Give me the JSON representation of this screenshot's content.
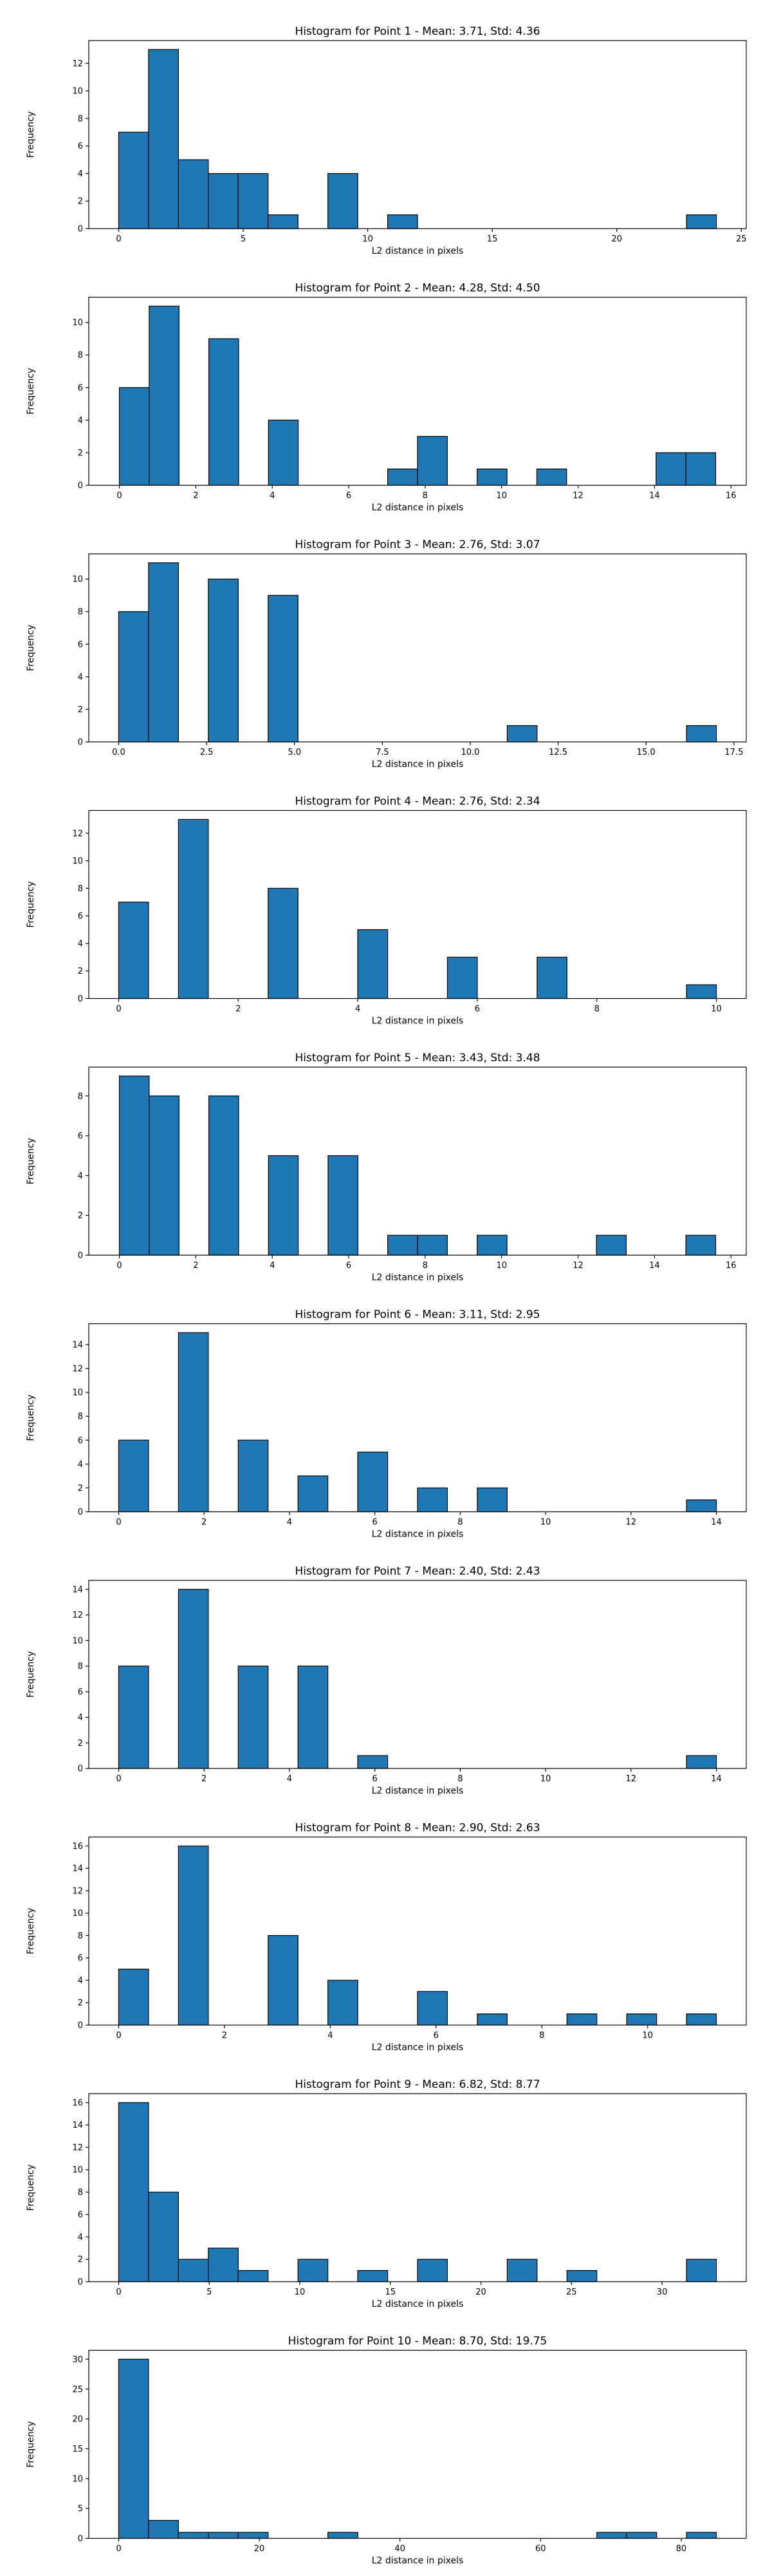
{
  "chart_data": [
    {
      "type": "bar",
      "title": "Histogram for Point 1 - Mean: 3.71, Std: 4.36",
      "xlabel": "L2 distance in pixels",
      "ylabel": "Frequency",
      "xlim": [
        -1.2,
        25.2
      ],
      "ylim": [
        0,
        13.65
      ],
      "xticks": [
        0,
        5,
        10,
        15,
        20,
        25
      ],
      "xtick_labels": [
        "0",
        "5",
        "10",
        "15",
        "20",
        "25"
      ],
      "yticks": [
        0,
        2,
        4,
        6,
        8,
        10,
        12
      ],
      "bins": [
        {
          "x0": 0.0,
          "x1": 1.2,
          "count": 7
        },
        {
          "x0": 1.2,
          "x1": 2.4,
          "count": 13
        },
        {
          "x0": 2.4,
          "x1": 3.6,
          "count": 5
        },
        {
          "x0": 3.6,
          "x1": 4.8,
          "count": 4
        },
        {
          "x0": 4.8,
          "x1": 6.0,
          "count": 4
        },
        {
          "x0": 6.0,
          "x1": 7.2,
          "count": 1
        },
        {
          "x0": 8.4,
          "x1": 9.6,
          "count": 4
        },
        {
          "x0": 10.8,
          "x1": 12.0,
          "count": 1
        },
        {
          "x0": 22.8,
          "x1": 24.0,
          "count": 1
        }
      ]
    },
    {
      "type": "bar",
      "title": "Histogram for Point 2 - Mean: 4.28, Std: 4.50",
      "xlabel": "L2 distance in pixels",
      "ylabel": "Frequency",
      "xlim": [
        -0.8,
        16.4
      ],
      "ylim": [
        0,
        11.55
      ],
      "xticks": [
        0,
        2,
        4,
        6,
        8,
        10,
        12,
        14,
        16
      ],
      "xtick_labels": [
        "0",
        "2",
        "4",
        "6",
        "8",
        "10",
        "12",
        "14",
        "16"
      ],
      "yticks": [
        0,
        2,
        4,
        6,
        8,
        10
      ],
      "bins": [
        {
          "x0": 0.0,
          "x1": 0.78,
          "count": 6
        },
        {
          "x0": 0.78,
          "x1": 1.56,
          "count": 11
        },
        {
          "x0": 2.34,
          "x1": 3.12,
          "count": 9
        },
        {
          "x0": 3.9,
          "x1": 4.68,
          "count": 4
        },
        {
          "x0": 7.02,
          "x1": 7.8,
          "count": 1
        },
        {
          "x0": 7.8,
          "x1": 8.58,
          "count": 3
        },
        {
          "x0": 9.36,
          "x1": 10.14,
          "count": 1
        },
        {
          "x0": 10.92,
          "x1": 11.7,
          "count": 1
        },
        {
          "x0": 14.04,
          "x1": 14.82,
          "count": 2
        },
        {
          "x0": 14.82,
          "x1": 15.6,
          "count": 2
        }
      ]
    },
    {
      "type": "bar",
      "title": "Histogram for Point 3 - Mean: 2.76, Std: 3.07",
      "xlabel": "L2 distance in pixels",
      "ylabel": "Frequency",
      "xlim": [
        -0.85,
        17.85
      ],
      "ylim": [
        0,
        11.55
      ],
      "xticks": [
        0,
        2.5,
        5,
        7.5,
        10,
        12.5,
        15,
        17.5
      ],
      "xtick_labels": [
        "0.0",
        "2.5",
        "5.0",
        "7.5",
        "10.0",
        "12.5",
        "15.0",
        "17.5"
      ],
      "yticks": [
        0,
        2,
        4,
        6,
        8,
        10
      ],
      "bins": [
        {
          "x0": 0.0,
          "x1": 0.85,
          "count": 8
        },
        {
          "x0": 0.85,
          "x1": 1.7,
          "count": 11
        },
        {
          "x0": 2.55,
          "x1": 3.4,
          "count": 10
        },
        {
          "x0": 4.25,
          "x1": 5.1,
          "count": 9
        },
        {
          "x0": 11.05,
          "x1": 11.9,
          "count": 1
        },
        {
          "x0": 16.15,
          "x1": 17.0,
          "count": 1
        }
      ]
    },
    {
      "type": "bar",
      "title": "Histogram for Point 4 - Mean: 2.76, Std: 2.34",
      "xlabel": "L2 distance in pixels",
      "ylabel": "Frequency",
      "xlim": [
        -0.5,
        10.5
      ],
      "ylim": [
        0,
        13.65
      ],
      "xticks": [
        0,
        2,
        4,
        6,
        8,
        10
      ],
      "xtick_labels": [
        "0",
        "2",
        "4",
        "6",
        "8",
        "10"
      ],
      "yticks": [
        0,
        2,
        4,
        6,
        8,
        10,
        12
      ],
      "bins": [
        {
          "x0": 0.0,
          "x1": 0.5,
          "count": 7
        },
        {
          "x0": 1.0,
          "x1": 1.5,
          "count": 13
        },
        {
          "x0": 2.5,
          "x1": 3.0,
          "count": 8
        },
        {
          "x0": 4.0,
          "x1": 4.5,
          "count": 5
        },
        {
          "x0": 5.5,
          "x1": 6.0,
          "count": 3
        },
        {
          "x0": 7.0,
          "x1": 7.5,
          "count": 3
        },
        {
          "x0": 9.5,
          "x1": 10.0,
          "count": 1
        }
      ]
    },
    {
      "type": "bar",
      "title": "Histogram for Point 5 - Mean: 3.43, Std: 3.48",
      "xlabel": "L2 distance in pixels",
      "ylabel": "Frequency",
      "xlim": [
        -0.8,
        16.4
      ],
      "ylim": [
        0,
        9.45
      ],
      "xticks": [
        0,
        2,
        4,
        6,
        8,
        10,
        12,
        14,
        16
      ],
      "xtick_labels": [
        "0",
        "2",
        "4",
        "6",
        "8",
        "10",
        "12",
        "14",
        "16"
      ],
      "yticks": [
        0,
        2,
        4,
        6,
        8
      ],
      "bins": [
        {
          "x0": 0.0,
          "x1": 0.78,
          "count": 9
        },
        {
          "x0": 0.78,
          "x1": 1.56,
          "count": 8
        },
        {
          "x0": 2.34,
          "x1": 3.12,
          "count": 8
        },
        {
          "x0": 3.9,
          "x1": 4.68,
          "count": 5
        },
        {
          "x0": 5.46,
          "x1": 6.24,
          "count": 5
        },
        {
          "x0": 7.02,
          "x1": 7.8,
          "count": 1
        },
        {
          "x0": 7.8,
          "x1": 8.58,
          "count": 1
        },
        {
          "x0": 9.36,
          "x1": 10.14,
          "count": 1
        },
        {
          "x0": 12.48,
          "x1": 13.26,
          "count": 1
        },
        {
          "x0": 14.82,
          "x1": 15.6,
          "count": 1
        }
      ]
    },
    {
      "type": "bar",
      "title": "Histogram for Point 6 - Mean: 3.11, Std: 2.95",
      "xlabel": "L2 distance in pixels",
      "ylabel": "Frequency",
      "xlim": [
        -0.7,
        14.7
      ],
      "ylim": [
        0,
        15.75
      ],
      "xticks": [
        0,
        2,
        4,
        6,
        8,
        10,
        12,
        14
      ],
      "xtick_labels": [
        "0",
        "2",
        "4",
        "6",
        "8",
        "10",
        "12",
        "14"
      ],
      "yticks": [
        0,
        2,
        4,
        6,
        8,
        10,
        12,
        14
      ],
      "bins": [
        {
          "x0": 0.0,
          "x1": 0.7,
          "count": 6
        },
        {
          "x0": 1.4,
          "x1": 2.1,
          "count": 15
        },
        {
          "x0": 2.8,
          "x1": 3.5,
          "count": 6
        },
        {
          "x0": 4.2,
          "x1": 4.9,
          "count": 3
        },
        {
          "x0": 5.6,
          "x1": 6.3,
          "count": 5
        },
        {
          "x0": 7.0,
          "x1": 7.7,
          "count": 2
        },
        {
          "x0": 8.4,
          "x1": 9.1,
          "count": 2
        },
        {
          "x0": 13.3,
          "x1": 14.0,
          "count": 1
        }
      ]
    },
    {
      "type": "bar",
      "title": "Histogram for Point 7 - Mean: 2.40, Std: 2.43",
      "xlabel": "L2 distance in pixels",
      "ylabel": "Frequency",
      "xlim": [
        -0.7,
        14.7
      ],
      "ylim": [
        0,
        14.7
      ],
      "xticks": [
        0,
        2,
        4,
        6,
        8,
        10,
        12,
        14
      ],
      "xtick_labels": [
        "0",
        "2",
        "4",
        "6",
        "8",
        "10",
        "12",
        "14"
      ],
      "yticks": [
        0,
        2,
        4,
        6,
        8,
        10,
        12,
        14
      ],
      "bins": [
        {
          "x0": 0.0,
          "x1": 0.7,
          "count": 8
        },
        {
          "x0": 1.4,
          "x1": 2.1,
          "count": 14
        },
        {
          "x0": 2.8,
          "x1": 3.5,
          "count": 8
        },
        {
          "x0": 4.2,
          "x1": 4.9,
          "count": 8
        },
        {
          "x0": 5.6,
          "x1": 6.3,
          "count": 1
        },
        {
          "x0": 13.3,
          "x1": 14.0,
          "count": 1
        }
      ]
    },
    {
      "type": "bar",
      "title": "Histogram for Point 8 - Mean: 2.90, Std: 2.63",
      "xlabel": "L2 distance in pixels",
      "ylabel": "Frequency",
      "xlim": [
        -0.565,
        11.865
      ],
      "ylim": [
        0,
        16.8
      ],
      "xticks": [
        0,
        2,
        4,
        6,
        8,
        10
      ],
      "xtick_labels": [
        "0",
        "2",
        "4",
        "6",
        "8",
        "10"
      ],
      "yticks": [
        0,
        2,
        4,
        6,
        8,
        10,
        12,
        14,
        16
      ],
      "bins": [
        {
          "x0": 0.0,
          "x1": 0.565,
          "count": 5
        },
        {
          "x0": 1.13,
          "x1": 1.695,
          "count": 16
        },
        {
          "x0": 2.825,
          "x1": 3.39,
          "count": 8
        },
        {
          "x0": 3.955,
          "x1": 4.52,
          "count": 4
        },
        {
          "x0": 5.65,
          "x1": 6.215,
          "count": 3
        },
        {
          "x0": 6.78,
          "x1": 7.345,
          "count": 1
        },
        {
          "x0": 8.475,
          "x1": 9.04,
          "count": 1
        },
        {
          "x0": 9.605,
          "x1": 10.17,
          "count": 1
        },
        {
          "x0": 10.735,
          "x1": 11.3,
          "count": 1
        }
      ]
    },
    {
      "type": "bar",
      "title": "Histogram for Point 9 - Mean: 6.82, Std: 8.77",
      "xlabel": "L2 distance in pixels",
      "ylabel": "Frequency",
      "xlim": [
        -1.65,
        34.65
      ],
      "ylim": [
        0,
        16.8
      ],
      "xticks": [
        0,
        5,
        10,
        15,
        20,
        25,
        30
      ],
      "xtick_labels": [
        "0",
        "5",
        "10",
        "15",
        "20",
        "25",
        "30"
      ],
      "yticks": [
        0,
        2,
        4,
        6,
        8,
        10,
        12,
        14,
        16
      ],
      "bins": [
        {
          "x0": 0.0,
          "x1": 1.65,
          "count": 16
        },
        {
          "x0": 1.65,
          "x1": 3.3,
          "count": 8
        },
        {
          "x0": 3.3,
          "x1": 4.95,
          "count": 2
        },
        {
          "x0": 4.95,
          "x1": 6.6,
          "count": 3
        },
        {
          "x0": 6.6,
          "x1": 8.25,
          "count": 1
        },
        {
          "x0": 9.9,
          "x1": 11.55,
          "count": 2
        },
        {
          "x0": 13.2,
          "x1": 14.85,
          "count": 1
        },
        {
          "x0": 16.5,
          "x1": 18.15,
          "count": 2
        },
        {
          "x0": 21.45,
          "x1": 23.1,
          "count": 2
        },
        {
          "x0": 24.75,
          "x1": 26.4,
          "count": 1
        },
        {
          "x0": 31.35,
          "x1": 33.0,
          "count": 2
        }
      ]
    },
    {
      "type": "bar",
      "title": "Histogram for Point 10 - Mean: 8.70, Std: 19.75",
      "xlabel": "L2 distance in pixels",
      "ylabel": "Frequency",
      "xlim": [
        -4.25,
        89.25
      ],
      "ylim": [
        0,
        31.5
      ],
      "xticks": [
        0,
        20,
        40,
        60,
        80
      ],
      "xtick_labels": [
        "0",
        "20",
        "40",
        "60",
        "80"
      ],
      "yticks": [
        0,
        5,
        10,
        15,
        20,
        25,
        30
      ],
      "bins": [
        {
          "x0": 0.0,
          "x1": 4.25,
          "count": 30
        },
        {
          "x0": 4.25,
          "x1": 8.5,
          "count": 3
        },
        {
          "x0": 8.5,
          "x1": 12.75,
          "count": 1
        },
        {
          "x0": 12.75,
          "x1": 17.0,
          "count": 1
        },
        {
          "x0": 17.0,
          "x1": 21.25,
          "count": 1
        },
        {
          "x0": 29.75,
          "x1": 34.0,
          "count": 1
        },
        {
          "x0": 68.0,
          "x1": 72.25,
          "count": 1
        },
        {
          "x0": 72.25,
          "x1": 76.5,
          "count": 1
        },
        {
          "x0": 80.75,
          "x1": 85.0,
          "count": 1
        }
      ]
    }
  ]
}
